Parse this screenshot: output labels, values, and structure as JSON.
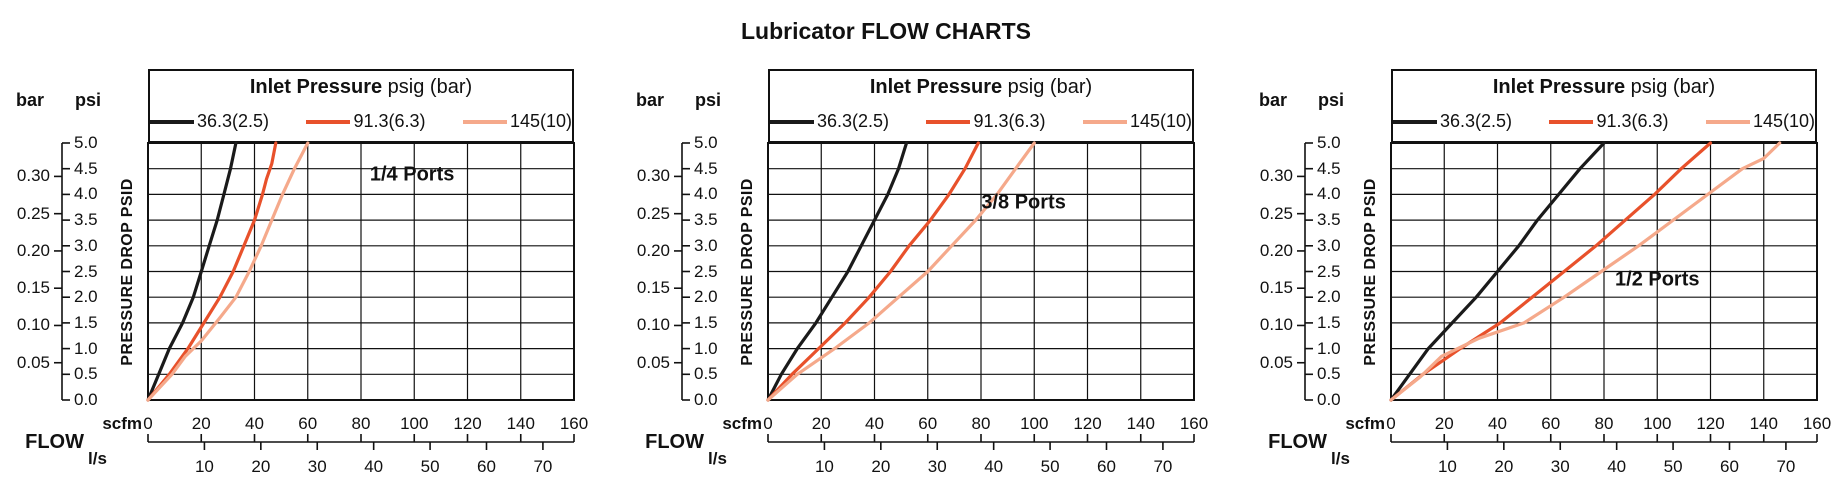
{
  "page_title": "Lubricator FLOW CHARTS",
  "colors": {
    "curve_black": "#1a1a1a",
    "curve_orange": "#e8512b",
    "curve_pink": "#f5a98b",
    "axis": "#111111"
  },
  "chart_data": [
    {
      "type": "line",
      "port_label": "1/4 Ports",
      "box_title_bold": "Inlet Pressure",
      "box_title_rest": "psig (bar)",
      "ylabel": "PRESSURE DROP PSID",
      "xlabel": "FLOW",
      "x_axis": {
        "primary_unit": "scfm",
        "primary_ticks": [
          0,
          20,
          40,
          60,
          80,
          100,
          120,
          140,
          160
        ],
        "secondary_unit": "l/s",
        "secondary_ticks": [
          10,
          20,
          30,
          40,
          50,
          60,
          70
        ],
        "xlim": [
          0,
          160
        ],
        "scfm_per_ls": 2.1189
      },
      "y_axis": {
        "right_unit": "psi",
        "right_ticks": [
          "5.0",
          "4.5",
          "4.0",
          "3.5",
          "3.0",
          "2.5",
          "2.0",
          "1.5",
          "1.0",
          "0.5",
          "0.0"
        ],
        "left_unit": "bar",
        "left_ticks": [
          "0.30",
          "0.25",
          "0.20",
          "0.15",
          "0.10",
          "0.05"
        ],
        "ylim": [
          0,
          5
        ],
        "psi_per_bar": 14.5
      },
      "grid": true,
      "series": [
        {
          "name": "36.3(2.5)",
          "color": "#1a1a1a",
          "points_scfm_psi": [
            [
              0,
              0
            ],
            [
              4,
              0.5
            ],
            [
              8,
              1.0
            ],
            [
              13,
              1.5
            ],
            [
              17,
              2.0
            ],
            [
              20,
              2.5
            ],
            [
              23,
              3.0
            ],
            [
              26,
              3.5
            ],
            [
              28.5,
              4.0
            ],
            [
              31,
              4.5
            ],
            [
              33,
              5.0
            ]
          ]
        },
        {
          "name": "91.3(6.3)",
          "color": "#e8512b",
          "points_scfm_psi": [
            [
              0,
              0
            ],
            [
              8,
              0.5
            ],
            [
              15,
              1.0
            ],
            [
              21,
              1.5
            ],
            [
              27,
              2.0
            ],
            [
              32,
              2.5
            ],
            [
              36,
              3.0
            ],
            [
              40,
              3.5
            ],
            [
              43,
              4.0
            ],
            [
              44.5,
              4.3
            ],
            [
              46.5,
              4.6
            ],
            [
              48,
              5.0
            ]
          ]
        },
        {
          "name": "145(10)",
          "color": "#f5a98b",
          "points_scfm_psi": [
            [
              0,
              0
            ],
            [
              9,
              0.5
            ],
            [
              14,
              0.85
            ],
            [
              20,
              1.15
            ],
            [
              27,
              1.6
            ],
            [
              33,
              2.0
            ],
            [
              38,
              2.5
            ],
            [
              42.5,
              3.0
            ],
            [
              46.5,
              3.5
            ],
            [
              50.5,
              4.0
            ],
            [
              55,
              4.5
            ],
            [
              60,
              5.0
            ]
          ]
        }
      ],
      "port_label_pos": {
        "x_frac": 0.62,
        "y_frac": 0.125
      }
    },
    {
      "type": "line",
      "port_label": "3/8 Ports",
      "box_title_bold": "Inlet Pressure",
      "box_title_rest": "psig (bar)",
      "ylabel": "PRESSURE DROP PSID",
      "xlabel": "FLOW",
      "x_axis": {
        "primary_unit": "scfm",
        "primary_ticks": [
          0,
          20,
          40,
          60,
          80,
          100,
          120,
          140,
          160
        ],
        "secondary_unit": "l/s",
        "secondary_ticks": [
          10,
          20,
          30,
          40,
          50,
          60,
          70
        ],
        "xlim": [
          0,
          160
        ],
        "scfm_per_ls": 2.1189
      },
      "y_axis": {
        "right_unit": "psi",
        "right_ticks": [
          "5.0",
          "4.5",
          "4.0",
          "3.5",
          "3.0",
          "2.5",
          "2.0",
          "1.5",
          "1.0",
          "0.5",
          "0.0"
        ],
        "left_unit": "bar",
        "left_ticks": [
          "0.30",
          "0.25",
          "0.20",
          "0.15",
          "0.10",
          "0.05"
        ],
        "ylim": [
          0,
          5
        ],
        "psi_per_bar": 14.5
      },
      "grid": true,
      "series": [
        {
          "name": "36.3(2.5)",
          "color": "#1a1a1a",
          "points_scfm_psi": [
            [
              0,
              0
            ],
            [
              5,
              0.5
            ],
            [
              11,
              1.0
            ],
            [
              18,
              1.5
            ],
            [
              24,
              2.0
            ],
            [
              30,
              2.5
            ],
            [
              35,
              3.0
            ],
            [
              40,
              3.5
            ],
            [
              45,
              4.0
            ],
            [
              49,
              4.5
            ],
            [
              52,
              5.0
            ]
          ]
        },
        {
          "name": "91.3(6.3)",
          "color": "#e8512b",
          "points_scfm_psi": [
            [
              0,
              0
            ],
            [
              9,
              0.5
            ],
            [
              19,
              1.0
            ],
            [
              29,
              1.5
            ],
            [
              38,
              2.0
            ],
            [
              46,
              2.5
            ],
            [
              53,
              3.0
            ],
            [
              61,
              3.5
            ],
            [
              68,
              4.0
            ],
            [
              74,
              4.5
            ],
            [
              79,
              5.0
            ]
          ]
        },
        {
          "name": "145(10)",
          "color": "#f5a98b",
          "points_scfm_psi": [
            [
              0,
              0
            ],
            [
              11,
              0.5
            ],
            [
              25,
              1.0
            ],
            [
              38,
              1.5
            ],
            [
              49,
              2.0
            ],
            [
              60,
              2.5
            ],
            [
              69,
              3.0
            ],
            [
              78,
              3.5
            ],
            [
              86,
              4.0
            ],
            [
              93,
              4.5
            ],
            [
              100,
              5.0
            ]
          ]
        }
      ],
      "port_label_pos": {
        "x_frac": 0.6,
        "y_frac": 0.235
      }
    },
    {
      "type": "line",
      "port_label": "1/2 Ports",
      "box_title_bold": "Inlet Pressure",
      "box_title_rest": "psig (bar)",
      "ylabel": "PRESSURE DROP PSID",
      "xlabel": "FLOW",
      "x_axis": {
        "primary_unit": "scfm",
        "primary_ticks": [
          0,
          20,
          40,
          60,
          80,
          100,
          120,
          140,
          160
        ],
        "secondary_unit": "l/s",
        "secondary_ticks": [
          10,
          20,
          30,
          40,
          50,
          60,
          70
        ],
        "xlim": [
          0,
          160
        ],
        "scfm_per_ls": 2.1189
      },
      "y_axis": {
        "right_unit": "psi",
        "right_ticks": [
          "5.0",
          "4.5",
          "4.0",
          "3.5",
          "3.0",
          "2.5",
          "2.0",
          "1.5",
          "1.0",
          "0.5",
          "0.0"
        ],
        "left_unit": "bar",
        "left_ticks": [
          "0.30",
          "0.25",
          "0.20",
          "0.15",
          "0.10",
          "0.05"
        ],
        "ylim": [
          0,
          5
        ],
        "psi_per_bar": 14.5
      },
      "grid": true,
      "series": [
        {
          "name": "36.3(2.5)",
          "color": "#1a1a1a",
          "points_scfm_psi": [
            [
              0,
              0
            ],
            [
              7,
              0.5
            ],
            [
              14,
              1.0
            ],
            [
              23,
              1.5
            ],
            [
              32,
              2.0
            ],
            [
              40,
              2.5
            ],
            [
              48,
              3.0
            ],
            [
              55,
              3.5
            ],
            [
              63,
              4.0
            ],
            [
              71,
              4.5
            ],
            [
              80,
              5.0
            ]
          ]
        },
        {
          "name": "91.3(6.3)",
          "color": "#e8512b",
          "points_scfm_psi": [
            [
              0,
              0
            ],
            [
              12,
              0.5
            ],
            [
              26,
              1.0
            ],
            [
              41,
              1.5
            ],
            [
              53,
              2.0
            ],
            [
              65,
              2.5
            ],
            [
              77,
              3.0
            ],
            [
              88,
              3.5
            ],
            [
              99,
              4.0
            ],
            [
              109,
              4.5
            ],
            [
              120,
              5.0
            ]
          ]
        },
        {
          "name": "145(10)",
          "color": "#f5a98b",
          "points_scfm_psi": [
            [
              0,
              0
            ],
            [
              11,
              0.45
            ],
            [
              19,
              0.85
            ],
            [
              33,
              1.2
            ],
            [
              50,
              1.5
            ],
            [
              65,
              2.0
            ],
            [
              79,
              2.5
            ],
            [
              93,
              3.0
            ],
            [
              106,
              3.5
            ],
            [
              119,
              4.0
            ],
            [
              132,
              4.5
            ],
            [
              140,
              4.7
            ],
            [
              146,
              5.0
            ]
          ]
        }
      ],
      "port_label_pos": {
        "x_frac": 0.625,
        "y_frac": 0.535
      }
    }
  ]
}
